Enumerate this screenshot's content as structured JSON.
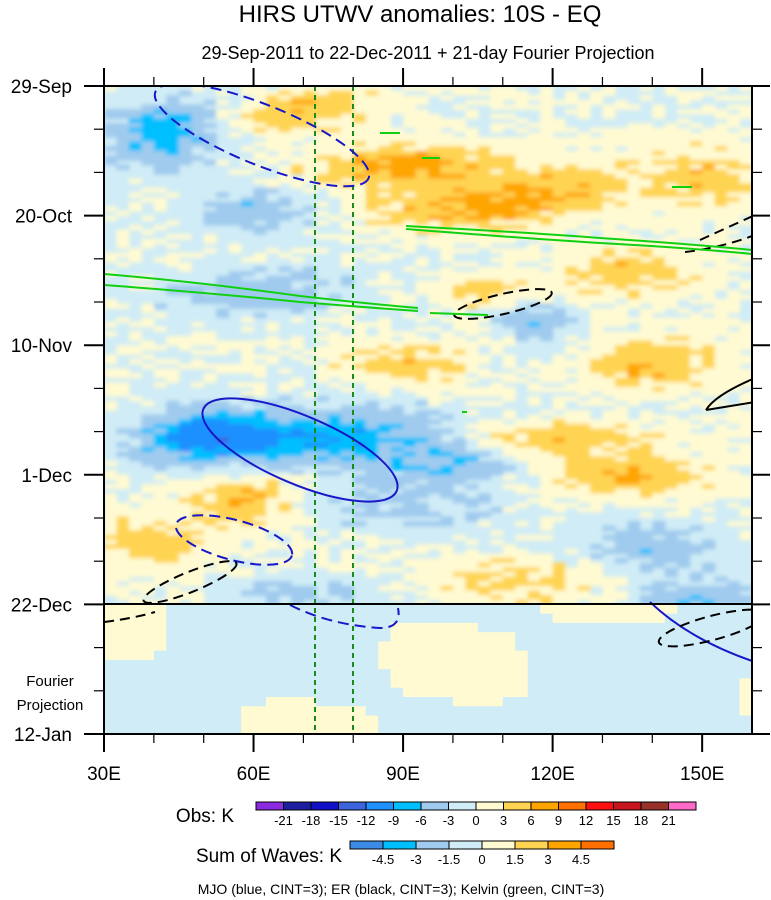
{
  "chart_data": {
    "type": "heatmap",
    "title": "HIRS UTWV anomalies: 10S - EQ",
    "subtitle": "29-Sep-2011 to 22-Dec-2011 + 21-day Fourier Projection",
    "x_ticks": [
      "30E",
      "60E",
      "90E",
      "120E",
      "150E"
    ],
    "x_tick_values": [
      30,
      60,
      90,
      120,
      150
    ],
    "xlim": [
      30,
      160
    ],
    "y_ticks": [
      "29-Sep",
      "20-Oct",
      "10-Nov",
      "1-Dec",
      "22-Dec",
      "12-Jan"
    ],
    "y_tick_days": [
      0,
      21,
      42,
      63,
      84,
      105
    ],
    "ylim_days": [
      0,
      105
    ],
    "projection_start_day": 84,
    "projection_label": [
      "Fourier",
      "Projection"
    ],
    "reference_longitudes": [
      72.5,
      80
    ],
    "obs_colorbar": {
      "label": "Obs: K",
      "levels": [
        "-21",
        "-18",
        "-15",
        "-12",
        "-9",
        "-6",
        "-3",
        "0",
        "3",
        "6",
        "9",
        "12",
        "15",
        "18",
        "21"
      ],
      "colors": [
        "#8a2be2",
        "#1e1ea0",
        "#1010c8",
        "#3c64dc",
        "#1e90ff",
        "#00bfff",
        "#a0cbee",
        "#d0ecf6",
        "#fffad2",
        "#ffd452",
        "#ffa500",
        "#ff7000",
        "#ff1010",
        "#c8141e",
        "#963228",
        "#ff69c8"
      ]
    },
    "waves_colorbar": {
      "label": "Sum of Waves: K",
      "levels": [
        "-4.5",
        "-3",
        "-1.5",
        "0",
        "1.5",
        "3",
        "4.5"
      ],
      "colors": [
        "#3c8ce6",
        "#00bfff",
        "#a0cbee",
        "#d0ecf6",
        "#fffad2",
        "#ffd452",
        "#ffa500",
        "#ff7000"
      ]
    },
    "footnote": "MJO (blue, CINT=3); ER (black, CINT=3); Kelvin (green, CINT=3)",
    "wave_colors": {
      "mjo": "#1818c8",
      "er": "#000000",
      "kelvin": "#10d010"
    }
  }
}
